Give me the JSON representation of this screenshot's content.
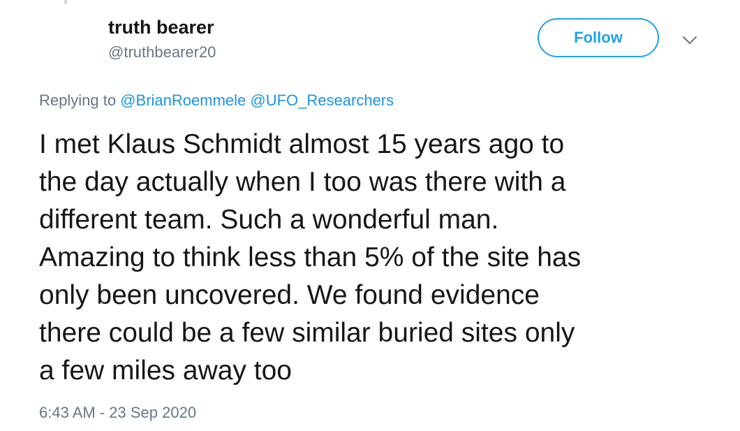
{
  "author": {
    "display_name": "truth bearer",
    "handle": "@truthbearer20"
  },
  "actions": {
    "follow_label": "Follow",
    "more_icon": "chevron-down-icon"
  },
  "reply_context": {
    "prefix": "Replying to",
    "mentions": [
      "@BrianRoemmele",
      "@UFO_Researchers"
    ]
  },
  "tweet": {
    "lines": [
      "I met Klaus Schmidt almost 15 years ago to",
      "the day actually when I too was there with a",
      "different team. Such a wonderful man.",
      "Amazing to think less than 5% of the site has",
      "only been uncovered. We found evidence",
      "there could be a few similar buried sites only",
      "a few miles away too"
    ]
  },
  "timestamp": "6:43 AM - 23 Sep 2020",
  "colors": {
    "accent": "#1da1f2",
    "mention": "#1b95e0",
    "secondary_text": "#657786",
    "primary_text": "#14171a"
  }
}
